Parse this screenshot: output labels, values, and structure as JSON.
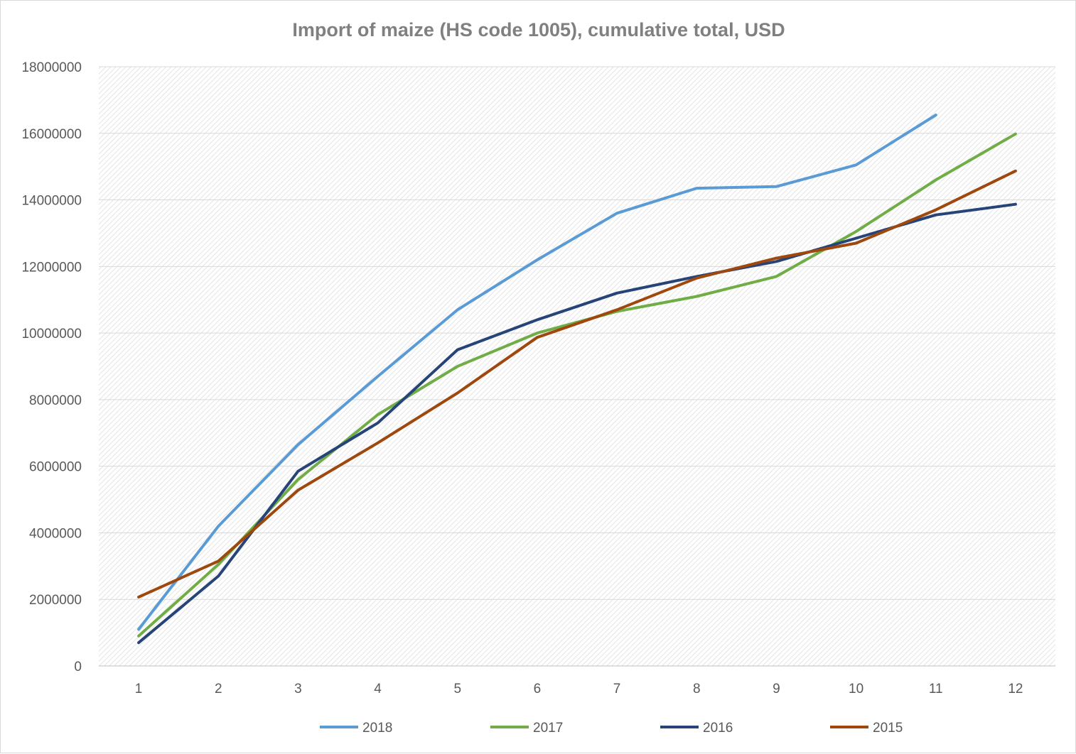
{
  "chart_data": {
    "type": "line",
    "title": "Import of maize (HS code 1005), cumulative total, USD",
    "xlabel": "",
    "ylabel": "",
    "categories": [
      "1",
      "2",
      "3",
      "4",
      "5",
      "6",
      "7",
      "8",
      "9",
      "10",
      "11",
      "12"
    ],
    "ylim": [
      0,
      18000000
    ],
    "yticks": [
      "0",
      "2000000",
      "4000000",
      "6000000",
      "8000000",
      "10000000",
      "12000000",
      "14000000",
      "16000000",
      "18000000"
    ],
    "grid": true,
    "legend_position": "bottom",
    "series": [
      {
        "name": "2018",
        "color": "#5b9bd5",
        "values": [
          1100000,
          4200000,
          6650000,
          8700000,
          10700000,
          12200000,
          13600000,
          14350000,
          14400000,
          15050000,
          16550000,
          null
        ]
      },
      {
        "name": "2017",
        "color": "#70ad47",
        "values": [
          900000,
          3050000,
          5600000,
          7550000,
          9000000,
          10000000,
          10650000,
          11100000,
          11700000,
          13050000,
          14600000,
          15980000
        ]
      },
      {
        "name": "2016",
        "color": "#264478",
        "values": [
          700000,
          2700000,
          5850000,
          7300000,
          9500000,
          10400000,
          11200000,
          11700000,
          12150000,
          12850000,
          13550000,
          13870000
        ]
      },
      {
        "name": "2015",
        "color": "#9e480e",
        "values": [
          2070000,
          3150000,
          5280000,
          6700000,
          8200000,
          9870000,
          10700000,
          11650000,
          12250000,
          12700000,
          13700000,
          14870000
        ]
      }
    ]
  }
}
